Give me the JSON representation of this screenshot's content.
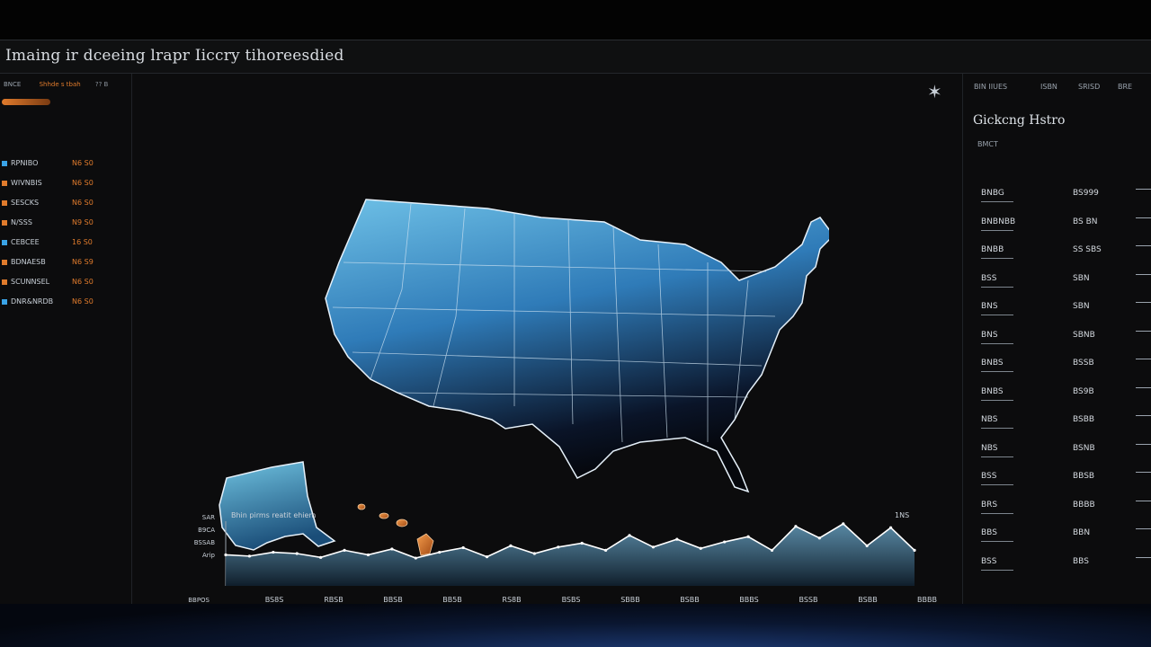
{
  "window": {
    "title": "Imaing ir dceeing lrapr Iiccry tihoreesdied"
  },
  "left_panel": {
    "header": {
      "label": "BNCE",
      "sort": "Shhde s tbah",
      "page": "?? B"
    },
    "items": [
      {
        "name": "RPNIBO",
        "value": "N6 S0",
        "color": "#3aa3e6"
      },
      {
        "name": "WIVNBIS",
        "value": "N6 S0",
        "color": "#e07b2c"
      },
      {
        "name": "SESCKS",
        "value": "N6 S0",
        "color": "#e07b2c"
      },
      {
        "name": "N/SSS",
        "value": "N9 S0",
        "color": "#e07b2c"
      },
      {
        "name": "CEBCEE",
        "value": "16 S0",
        "color": "#3aa3e6"
      },
      {
        "name": "BDNAESB",
        "value": "N6 S9",
        "color": "#e07b2c"
      },
      {
        "name": "SCUNNSEL",
        "value": "N6 S0",
        "color": "#e07b2c"
      },
      {
        "name": "DNR&NRDB",
        "value": "N6 S0",
        "color": "#3aa3e6"
      }
    ]
  },
  "map_panel": {
    "close_icon": "sparkle-icon",
    "sparkline": {
      "label": "Bhin pirms reatit ehiem",
      "right_label": "1NS",
      "y_labels": [
        "SAR",
        "B9CA",
        "BSSAB",
        "Arip",
        "BBPOS"
      ],
      "x_labels": [
        "BS8S",
        "RBSB",
        "BBSB",
        "BB5B",
        "RS8B",
        "BSBS",
        "SBBB",
        "BSBB",
        "BBBS",
        "BSSB",
        "BSBB",
        "BBBB"
      ],
      "values": [
        0.48,
        0.46,
        0.52,
        0.5,
        0.44,
        0.55,
        0.48,
        0.57,
        0.43,
        0.52,
        0.59,
        0.45,
        0.62,
        0.5,
        0.6,
        0.66,
        0.55,
        0.78,
        0.6,
        0.72,
        0.58,
        0.68,
        0.76,
        0.55,
        0.92,
        0.74,
        0.96,
        0.62,
        0.9,
        0.55
      ]
    }
  },
  "right_panel": {
    "tabs": [
      "BIN IIUES",
      "ISBN",
      "SRISD",
      "BRE"
    ],
    "heading": "Gickcng Hstro",
    "col_header": "BMCT",
    "rows": [
      {
        "a": "BNBG",
        "b": "BS999"
      },
      {
        "a": "BNBNBB",
        "b": "BS BN"
      },
      {
        "a": "BNBB",
        "b": "SS SBS"
      },
      {
        "a": "BSS",
        "b": "SBN"
      },
      {
        "a": "BNS",
        "b": "SBN"
      },
      {
        "a": "BNS",
        "b": "SBNB"
      },
      {
        "a": "BNBS",
        "b": "BSSB"
      },
      {
        "a": "BNBS",
        "b": "BS9B"
      },
      {
        "a": "NBS",
        "b": "BSBB"
      },
      {
        "a": "NBS",
        "b": "BSNB"
      },
      {
        "a": "BSS",
        "b": "BBSB"
      },
      {
        "a": "BRS",
        "b": "BBBB"
      },
      {
        "a": "BBS",
        "b": "BBN"
      },
      {
        "a": "BSS",
        "b": "BBS"
      }
    ]
  }
}
